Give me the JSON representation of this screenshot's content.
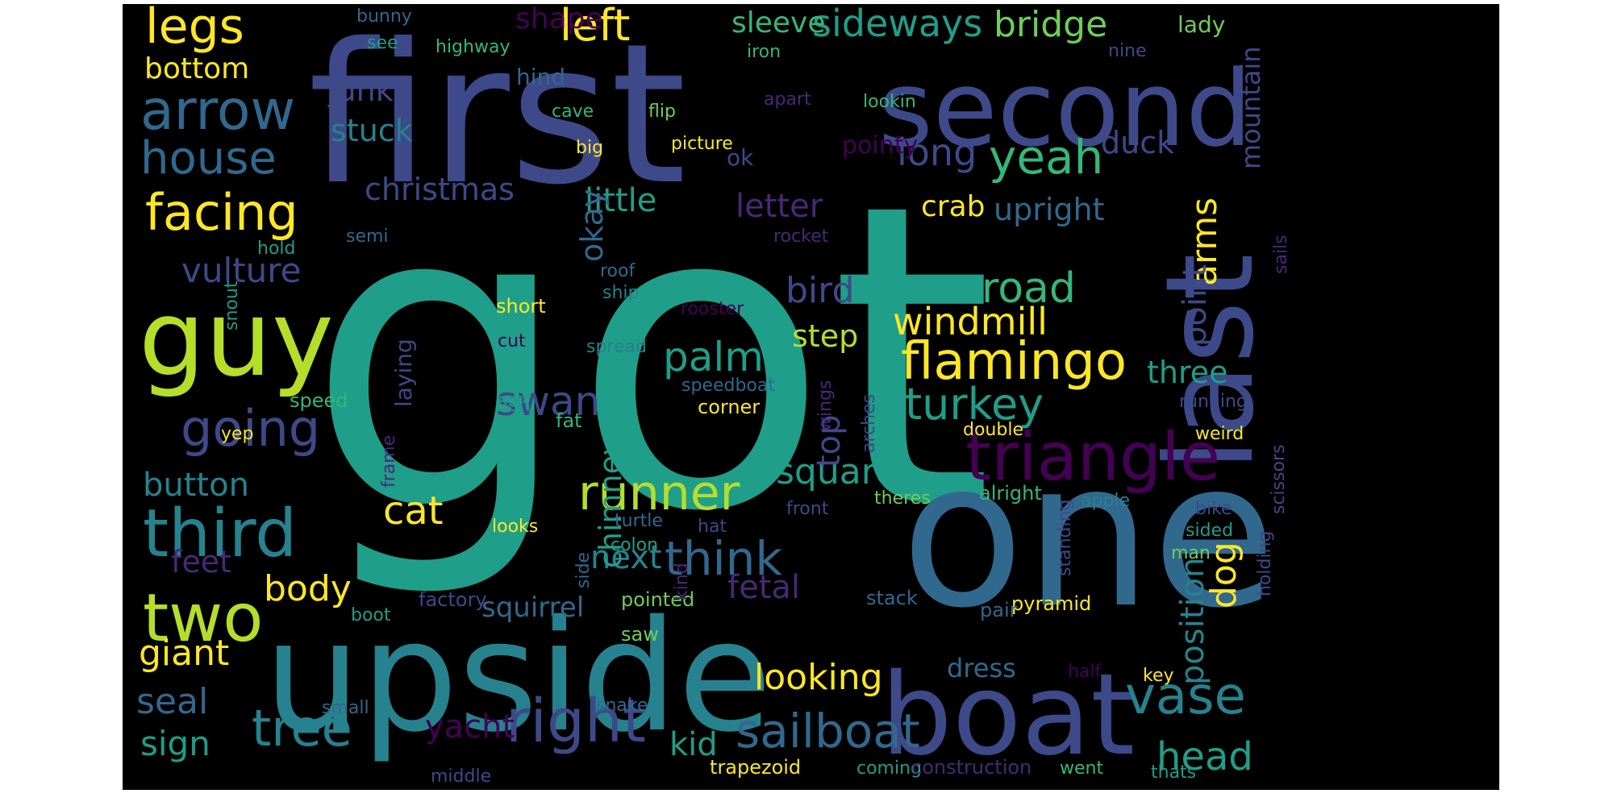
{
  "background": "#000000",
  "palette": {
    "c1": "#fde725",
    "c2": "#b5de2b",
    "c3": "#6ece58",
    "c4": "#35b779",
    "c5": "#1f9e89",
    "c6": "#26828e",
    "c7": "#31688e",
    "c8": "#3e4989",
    "c9": "#482878",
    "c10": "#440154"
  },
  "words": [
    {
      "text": "got",
      "color": "c5"
    },
    {
      "text": "first",
      "color": "c8"
    },
    {
      "text": "one",
      "color": "c7"
    },
    {
      "text": "upside",
      "color": "c6"
    },
    {
      "text": "last",
      "color": "c8"
    },
    {
      "text": "second",
      "color": "c8"
    },
    {
      "text": "boat",
      "color": "c8"
    },
    {
      "text": "guy",
      "color": "c2"
    },
    {
      "text": "triangle",
      "color": "c10"
    },
    {
      "text": "third",
      "color": "c6"
    },
    {
      "text": "two",
      "color": "c2"
    },
    {
      "text": "right",
      "color": "c8"
    },
    {
      "text": "tree",
      "color": "c6"
    },
    {
      "text": "arrow",
      "color": "c7"
    },
    {
      "text": "house",
      "color": "c7"
    },
    {
      "text": "facing",
      "color": "c1"
    },
    {
      "text": "going",
      "color": "c8"
    },
    {
      "text": "legs",
      "color": "c1"
    },
    {
      "text": "flamingo",
      "color": "c1"
    },
    {
      "text": "vase",
      "color": "c6"
    },
    {
      "text": "sailboat",
      "color": "c7"
    },
    {
      "text": "runner",
      "color": "c2"
    },
    {
      "text": "think",
      "color": "c7"
    },
    {
      "text": "turkey",
      "color": "c5"
    },
    {
      "text": "yeah",
      "color": "c4"
    },
    {
      "text": "road",
      "color": "c4"
    },
    {
      "text": "windmill",
      "color": "c1"
    },
    {
      "text": "palm",
      "color": "c5"
    },
    {
      "text": "swan",
      "color": "c8"
    },
    {
      "text": "cat",
      "color": "c1"
    },
    {
      "text": "head",
      "color": "c5"
    },
    {
      "text": "left",
      "color": "c1"
    },
    {
      "text": "sideways",
      "color": "c5"
    },
    {
      "text": "bridge",
      "color": "c3"
    },
    {
      "text": "long",
      "color": "c8"
    },
    {
      "text": "looking",
      "color": "c1"
    },
    {
      "text": "dog",
      "color": "c1"
    },
    {
      "text": "arms",
      "color": "c1"
    },
    {
      "text": "square",
      "color": "c5"
    },
    {
      "text": "body",
      "color": "c1"
    },
    {
      "text": "giant",
      "color": "c1"
    },
    {
      "text": "vulture",
      "color": "c8"
    },
    {
      "text": "bird",
      "color": "c8"
    },
    {
      "text": "seal",
      "color": "c7"
    },
    {
      "text": "sign",
      "color": "c5"
    },
    {
      "text": "yacht",
      "color": "c10"
    },
    {
      "text": "kid",
      "color": "c5"
    },
    {
      "text": "fetal",
      "color": "c9"
    },
    {
      "text": "next",
      "color": "c6"
    },
    {
      "text": "little",
      "color": "c5"
    },
    {
      "text": "letter",
      "color": "c9"
    },
    {
      "text": "button",
      "color": "c6"
    },
    {
      "text": "feet",
      "color": "c9"
    },
    {
      "text": "step",
      "color": "c2"
    },
    {
      "text": "top",
      "color": "c8"
    },
    {
      "text": "position",
      "color": "c6"
    },
    {
      "text": "point",
      "color": "c8"
    },
    {
      "text": "christmas",
      "color": "c8"
    },
    {
      "text": "okay",
      "color": "c7"
    },
    {
      "text": "chimney",
      "color": "c5"
    },
    {
      "text": "squirrel",
      "color": "c7"
    },
    {
      "text": "stuck",
      "color": "c6"
    },
    {
      "text": "junk",
      "color": "c8"
    },
    {
      "text": "bottom",
      "color": "c1"
    },
    {
      "text": "shape",
      "color": "c10"
    },
    {
      "text": "sleeve",
      "color": "c4"
    },
    {
      "text": "duck",
      "color": "c8"
    },
    {
      "text": "upright",
      "color": "c7"
    },
    {
      "text": "crab",
      "color": "c1"
    },
    {
      "text": "mountain",
      "color": "c8"
    },
    {
      "text": "three",
      "color": "c5"
    },
    {
      "text": "dress",
      "color": "c7"
    },
    {
      "text": "lady",
      "color": "c3"
    },
    {
      "text": "pointy",
      "color": "c10"
    },
    {
      "text": "laying",
      "color": "c8"
    },
    {
      "text": "hind",
      "color": "c7"
    },
    {
      "text": "ok",
      "color": "c8"
    },
    {
      "text": "bunny",
      "color": "c7"
    },
    {
      "text": "see",
      "color": "c5"
    },
    {
      "text": "highway",
      "color": "c4"
    },
    {
      "text": "iron",
      "color": "c4"
    },
    {
      "text": "nine",
      "color": "c8"
    },
    {
      "text": "apart",
      "color": "c9"
    },
    {
      "text": "lookin",
      "color": "c4"
    },
    {
      "text": "cave",
      "color": "c4"
    },
    {
      "text": "big",
      "color": "c1"
    },
    {
      "text": "flip",
      "color": "c3"
    },
    {
      "text": "picture",
      "color": "c1"
    },
    {
      "text": "semi",
      "color": "c7"
    },
    {
      "text": "hold",
      "color": "c5"
    },
    {
      "text": "rocket",
      "color": "c9"
    },
    {
      "text": "roof",
      "color": "c7"
    },
    {
      "text": "ship",
      "color": "c6"
    },
    {
      "text": "short",
      "color": "c1"
    },
    {
      "text": "rooster",
      "color": "c10"
    },
    {
      "text": "cut",
      "color": "c10"
    },
    {
      "text": "spread",
      "color": "c6"
    },
    {
      "text": "snout",
      "color": "c5"
    },
    {
      "text": "sails",
      "color": "c9"
    },
    {
      "text": "speed",
      "color": "c4"
    },
    {
      "text": "fish",
      "color": "c5"
    },
    {
      "text": "speedboat",
      "color": "c7"
    },
    {
      "text": "corner",
      "color": "c1"
    },
    {
      "text": "running",
      "color": "c8"
    },
    {
      "text": "yep",
      "color": "c1"
    },
    {
      "text": "fat",
      "color": "c4"
    },
    {
      "text": "wings",
      "color": "c9"
    },
    {
      "text": "arches",
      "color": "c8"
    },
    {
      "text": "double",
      "color": "c1"
    },
    {
      "text": "weird",
      "color": "c1"
    },
    {
      "text": "frame",
      "color": "c9"
    },
    {
      "text": "theres",
      "color": "c3"
    },
    {
      "text": "alright",
      "color": "c4"
    },
    {
      "text": "apple",
      "color": "c6"
    },
    {
      "text": "scissors",
      "color": "c8"
    },
    {
      "text": "looks",
      "color": "c1"
    },
    {
      "text": "turtle",
      "color": "c7"
    },
    {
      "text": "hat",
      "color": "c8"
    },
    {
      "text": "front",
      "color": "c8"
    },
    {
      "text": "bike",
      "color": "c8"
    },
    {
      "text": "sided",
      "color": "c5"
    },
    {
      "text": "colon",
      "color": "c5"
    },
    {
      "text": "man",
      "color": "c3"
    },
    {
      "text": "standing",
      "color": "c8"
    },
    {
      "text": "factory",
      "color": "c8"
    },
    {
      "text": "pointed",
      "color": "c3"
    },
    {
      "text": "stack",
      "color": "c7"
    },
    {
      "text": "pyramid",
      "color": "c1"
    },
    {
      "text": "boot",
      "color": "c5"
    },
    {
      "text": "saw",
      "color": "c3"
    },
    {
      "text": "pair",
      "color": "c7"
    },
    {
      "text": "holding",
      "color": "c8"
    },
    {
      "text": "key",
      "color": "c1"
    },
    {
      "text": "side",
      "color": "c7"
    },
    {
      "text": "kind",
      "color": "c9"
    },
    {
      "text": "small",
      "color": "c7"
    },
    {
      "text": "half",
      "color": "c10"
    },
    {
      "text": "snake",
      "color": "c7"
    },
    {
      "text": "middle",
      "color": "c8"
    },
    {
      "text": "trapezoid",
      "color": "c1"
    },
    {
      "text": "coming",
      "color": "c5"
    },
    {
      "text": "construction",
      "color": "c9"
    },
    {
      "text": "went",
      "color": "c4"
    },
    {
      "text": "thats",
      "color": "c5"
    }
  ]
}
